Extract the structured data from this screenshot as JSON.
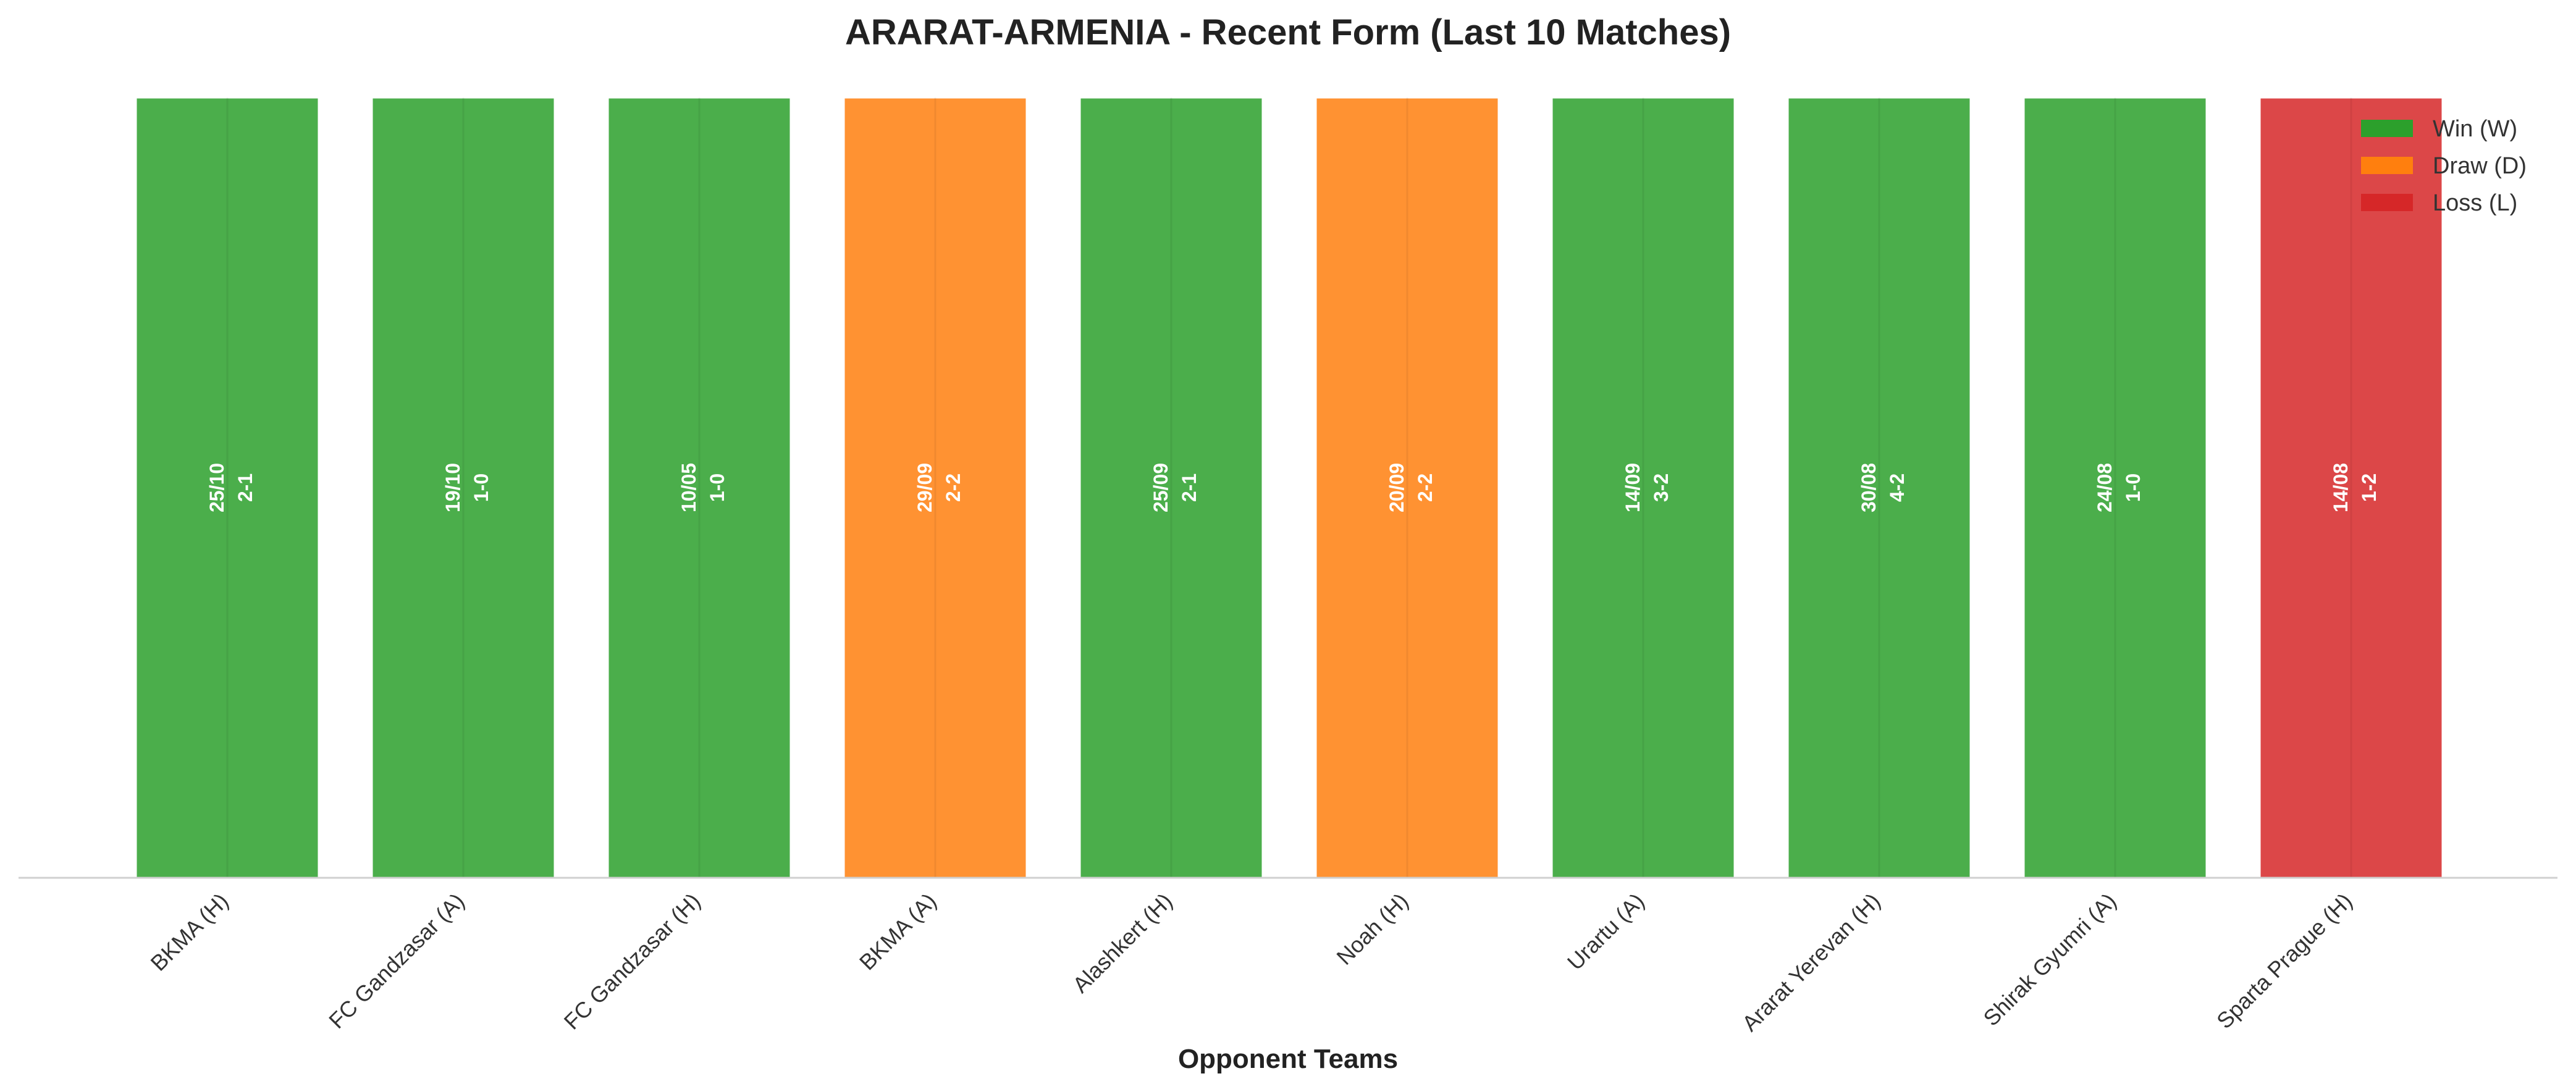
{
  "chart_data": {
    "type": "bar",
    "title": "ARARAT-ARMENIA - Recent Form (Last 10 Matches)",
    "xlabel": "Opponent Teams",
    "ylabel": "",
    "ylim": [
      0,
      1
    ],
    "grid": false,
    "legend_position": "top-right",
    "categories": [
      "BKMA (H)",
      "FC Gandzasar (A)",
      "FC Gandzasar (H)",
      "BKMA (A)",
      "Alashkert (H)",
      "Noah (H)",
      "Urartu (A)",
      "Ararat Yerevan (H)",
      "Shirak Gyumri (A)",
      "Sparta Prague (H)"
    ],
    "values": [
      1,
      1,
      1,
      1,
      1,
      1,
      1,
      1,
      1,
      1
    ],
    "results": [
      "W",
      "W",
      "W",
      "D",
      "W",
      "D",
      "W",
      "W",
      "W",
      "L"
    ],
    "dates": [
      "25/10",
      "19/10",
      "10/05",
      "29/09",
      "25/09",
      "20/09",
      "14/09",
      "30/08",
      "24/08",
      "14/08"
    ],
    "scores": [
      "2-1",
      "1-0",
      "1-0",
      "2-2",
      "2-1",
      "2-2",
      "3-2",
      "4-2",
      "1-0",
      "1-2"
    ],
    "legend": [
      {
        "key": "W",
        "label": "Win (W)",
        "color": "#2ca02c"
      },
      {
        "key": "D",
        "label": "Draw (D)",
        "color": "#ff7f0e"
      },
      {
        "key": "L",
        "label": "Loss (L)",
        "color": "#d62728"
      }
    ]
  }
}
